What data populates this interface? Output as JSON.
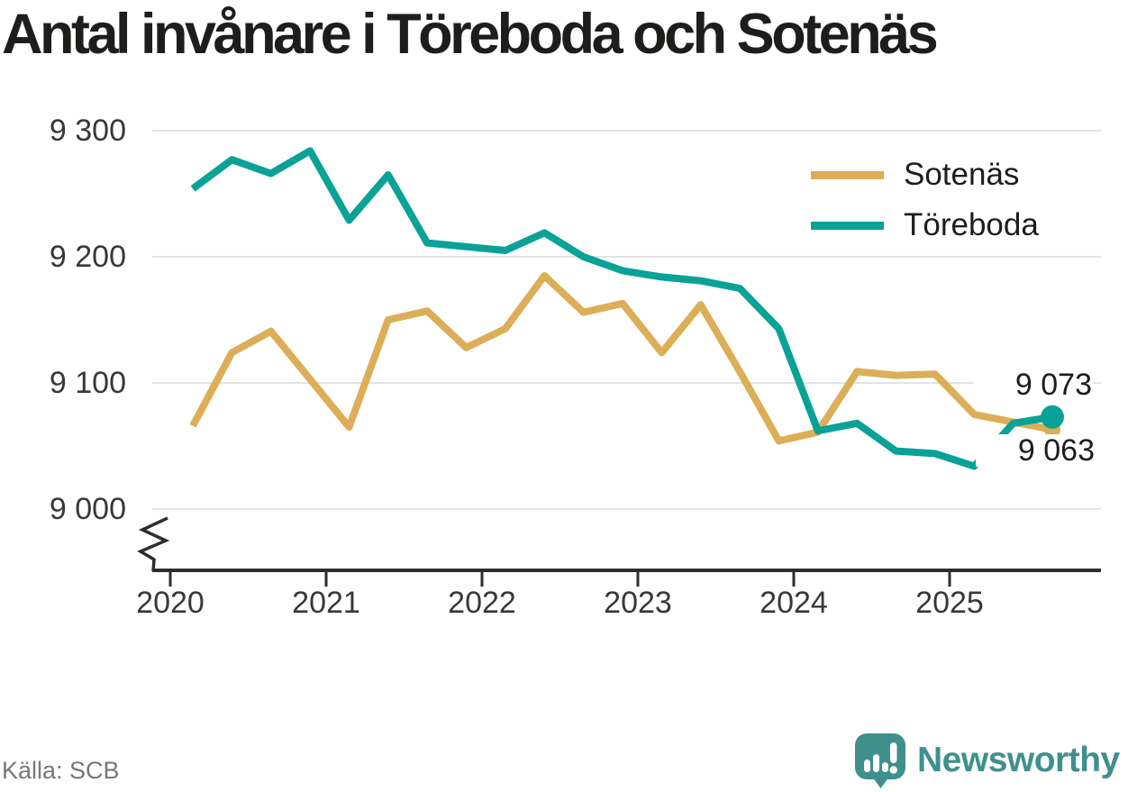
{
  "title": "Antal invånare i Töreboda och Sotenäs",
  "source": "Källa: SCB",
  "logo": {
    "text": "Newsworthy"
  },
  "colors": {
    "sotenas": "#dcae57",
    "toreboda": "#09a296",
    "grid": "#e3e3e3",
    "axis": "#2e2e2e",
    "tick_text": "#383838",
    "title_text": "#1d1d1b",
    "source_text": "#77777b",
    "logo_teal": "#3f908d"
  },
  "chart_data": {
    "type": "line",
    "title": "Antal invånare i Töreboda och Sotenäs",
    "grid": "horizontal",
    "legend_position": "top-right",
    "x_axis": {
      "ticks": [
        {
          "value": 2020,
          "label": "2020"
        },
        {
          "value": 2021,
          "label": "2021"
        },
        {
          "value": 2022,
          "label": "2022"
        },
        {
          "value": 2023,
          "label": "2023"
        },
        {
          "value": 2024,
          "label": "2024"
        },
        {
          "value": 2025,
          "label": "2025"
        }
      ],
      "axis_break": true
    },
    "y_axis": {
      "ticks": [
        {
          "value": 9300,
          "label": "9 300"
        },
        {
          "value": 9200,
          "label": "9 200"
        },
        {
          "value": 9100,
          "label": "9 100"
        },
        {
          "value": 9000,
          "label": "9 000"
        }
      ],
      "range_shown": [
        9000,
        9300
      ]
    },
    "categories": [
      "2020-K1",
      "2020-K2",
      "2020-K3",
      "2020-K4",
      "2021-K1",
      "2021-K2",
      "2021-K3",
      "2021-K4",
      "2022-K1",
      "2022-K2",
      "2022-K3",
      "2022-K4",
      "2023-K1",
      "2023-K2",
      "2023-K3",
      "2023-K4",
      "2024-K1",
      "2024-K2",
      "2024-K3",
      "2024-K4",
      "2025-K1",
      "2025-K2",
      "2025-K3"
    ],
    "series": [
      {
        "name": "Sotenäs",
        "color": "#dcae57",
        "end_label": "9 063",
        "values": [
          9066,
          9124,
          9141,
          9103,
          9065,
          9150,
          9157,
          9128,
          9143,
          9185,
          9156,
          9163,
          9124,
          9162,
          9109,
          9054,
          9061,
          9109,
          9106,
          9107,
          9075,
          9069,
          9063
        ]
      },
      {
        "name": "Töreboda",
        "color": "#09a296",
        "end_label": "9 073",
        "values": [
          9254,
          9277,
          9266,
          9284,
          9229,
          9265,
          9211,
          9208,
          9205,
          9219,
          9200,
          9189,
          9184,
          9181,
          9175,
          9143,
          9062,
          9068,
          9046,
          9044,
          9034,
          9068,
          9073
        ]
      }
    ]
  }
}
